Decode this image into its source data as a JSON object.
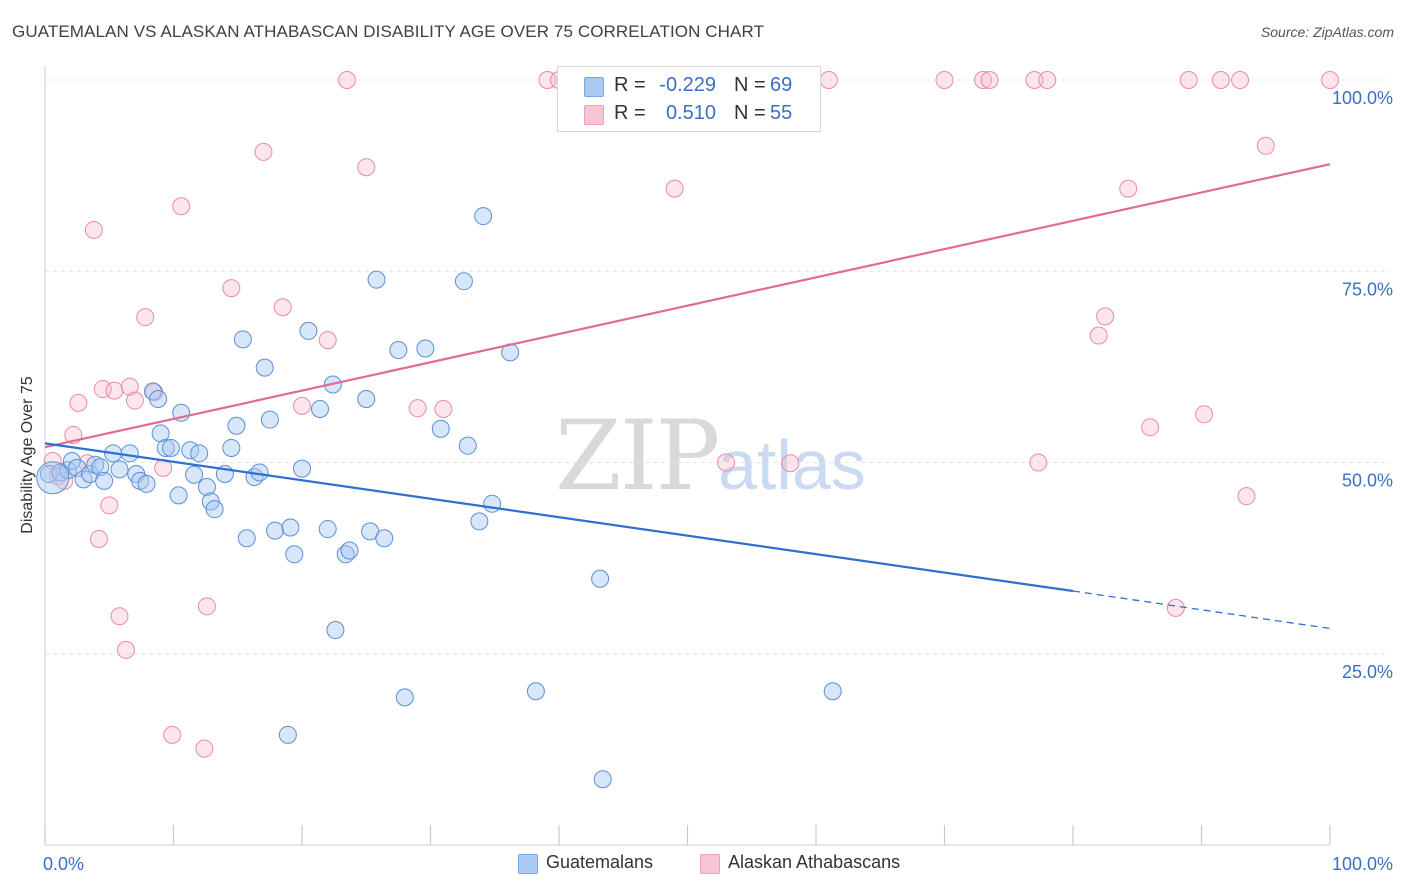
{
  "title": "GUATEMALAN VS ALASKAN ATHABASCAN DISABILITY AGE OVER 75 CORRELATION CHART",
  "source": "Source: ZipAtlas.com",
  "watermark": {
    "zip": "ZIP",
    "atlas": "atlas"
  },
  "legend": {
    "rows": [
      {
        "r_label": "R =",
        "r_value": "-0.229",
        "n_label": "N =",
        "n_value": "69",
        "color": "#a9c8f2"
      },
      {
        "r_label": "R =",
        "r_value": "0.510",
        "n_label": "N =",
        "n_value": "55",
        "color": "#f6b6c9"
      }
    ]
  },
  "bottom_legend": {
    "items": [
      {
        "label": "Guatemalans",
        "color": "#a9c8f2"
      },
      {
        "label": "Alaskan Athabascans",
        "color": "#f6b6c9"
      }
    ]
  },
  "chart_data": {
    "type": "scatter",
    "title": "GUATEMALAN VS ALASKAN ATHABASCAN DISABILITY AGE OVER 75 CORRELATION CHART",
    "xlabel": "",
    "ylabel": "Disability Age Over 75",
    "xlim": [
      0,
      100
    ],
    "ylim": [
      0,
      100
    ],
    "x_tick_labels": [
      "0.0%",
      "100.0%"
    ],
    "y_tick_labels": [
      "25.0%",
      "50.0%",
      "75.0%",
      "100.0%"
    ],
    "y_ticks": [
      25,
      50,
      75,
      100
    ],
    "grid": true,
    "colors": {
      "guatemalans": "#5b8fd8",
      "guatemalans_fill": "rgba(169,200,242,0.45)",
      "athabascans": "#ec8aa9",
      "athabascans_fill": "rgba(246,182,201,0.35)",
      "blue_line": "#2f6fd1",
      "pink_line": "#e06b95",
      "axis_text": "#3a6fc4"
    },
    "series": [
      {
        "name": "Guatemalans",
        "trend": {
          "x": [
            0,
            80,
            100
          ],
          "y": [
            52.5,
            33.2,
            28.3
          ],
          "solid_until": 80
        },
        "points": [
          [
            0.3,
            48.5
          ],
          [
            1.2,
            48.7
          ],
          [
            1.8,
            49.0
          ],
          [
            2.1,
            50.2
          ],
          [
            2.5,
            49.3
          ],
          [
            3.0,
            47.8
          ],
          [
            3.5,
            48.5
          ],
          [
            3.9,
            49.7
          ],
          [
            4.3,
            49.4
          ],
          [
            4.6,
            47.6
          ],
          [
            5.3,
            51.2
          ],
          [
            5.8,
            49.1
          ],
          [
            6.6,
            51.2
          ],
          [
            7.1,
            48.5
          ],
          [
            7.4,
            47.6
          ],
          [
            7.9,
            47.2
          ],
          [
            8.4,
            59.3
          ],
          [
            8.8,
            58.3
          ],
          [
            9.0,
            53.8
          ],
          [
            9.4,
            51.9
          ],
          [
            9.8,
            51.9
          ],
          [
            10.4,
            45.7
          ],
          [
            10.6,
            56.5
          ],
          [
            11.3,
            51.6
          ],
          [
            11.6,
            48.4
          ],
          [
            12.0,
            51.2
          ],
          [
            12.6,
            46.8
          ],
          [
            12.9,
            44.9
          ],
          [
            13.2,
            43.9
          ],
          [
            14.0,
            48.5
          ],
          [
            14.5,
            51.9
          ],
          [
            14.9,
            54.8
          ],
          [
            15.4,
            66.1
          ],
          [
            15.7,
            40.1
          ],
          [
            16.3,
            48.1
          ],
          [
            16.7,
            48.7
          ],
          [
            17.1,
            62.4
          ],
          [
            17.5,
            55.6
          ],
          [
            17.9,
            41.1
          ],
          [
            18.9,
            14.4
          ],
          [
            19.1,
            41.5
          ],
          [
            19.4,
            38.0
          ],
          [
            20.0,
            49.2
          ],
          [
            20.5,
            67.2
          ],
          [
            21.4,
            57.0
          ],
          [
            22.0,
            41.3
          ],
          [
            22.4,
            60.2
          ],
          [
            22.6,
            28.1
          ],
          [
            23.4,
            38.0
          ],
          [
            23.7,
            38.5
          ],
          [
            25.0,
            58.3
          ],
          [
            25.3,
            41.0
          ],
          [
            25.8,
            73.9
          ],
          [
            26.4,
            40.1
          ],
          [
            27.5,
            64.7
          ],
          [
            28.0,
            19.3
          ],
          [
            29.6,
            64.9
          ],
          [
            30.8,
            54.4
          ],
          [
            32.6,
            73.7
          ],
          [
            32.9,
            52.2
          ],
          [
            33.8,
            42.3
          ],
          [
            34.1,
            82.2
          ],
          [
            34.8,
            44.6
          ],
          [
            36.2,
            64.4
          ],
          [
            38.2,
            20.1
          ],
          [
            43.2,
            34.8
          ],
          [
            43.4,
            8.6
          ],
          [
            61.3,
            20.1
          ],
          [
            0.6,
            48.0
          ]
        ]
      },
      {
        "name": "Alaskan Athabascans",
        "trend": {
          "x": [
            0,
            100
          ],
          "y": [
            52.0,
            89.0
          ]
        },
        "points": [
          [
            0.6,
            50.2
          ],
          [
            1.0,
            48.2
          ],
          [
            1.5,
            47.6
          ],
          [
            2.2,
            53.6
          ],
          [
            2.6,
            57.8
          ],
          [
            3.3,
            49.9
          ],
          [
            3.8,
            80.4
          ],
          [
            4.2,
            40.0
          ],
          [
            4.5,
            59.6
          ],
          [
            5.0,
            44.4
          ],
          [
            5.4,
            59.4
          ],
          [
            5.8,
            29.9
          ],
          [
            6.3,
            25.5
          ],
          [
            6.6,
            59.9
          ],
          [
            7.0,
            58.1
          ],
          [
            7.8,
            69.0
          ],
          [
            8.5,
            59.2
          ],
          [
            9.2,
            49.3
          ],
          [
            9.9,
            14.4
          ],
          [
            10.6,
            83.5
          ],
          [
            12.4,
            12.6
          ],
          [
            12.6,
            31.2
          ],
          [
            14.5,
            72.8
          ],
          [
            17.0,
            90.6
          ],
          [
            18.5,
            70.3
          ],
          [
            20.0,
            57.4
          ],
          [
            22.0,
            66.0
          ],
          [
            23.5,
            100.0
          ],
          [
            25.0,
            88.6
          ],
          [
            29.0,
            57.1
          ],
          [
            31.0,
            57.0
          ],
          [
            39.1,
            100.0
          ],
          [
            40.0,
            100.0
          ],
          [
            49.0,
            85.8
          ],
          [
            53.0,
            50.0
          ],
          [
            58.0,
            49.9
          ],
          [
            61.0,
            100.0
          ],
          [
            70.0,
            100.0
          ],
          [
            73.0,
            100.0
          ],
          [
            73.5,
            100.0
          ],
          [
            77.0,
            100.0
          ],
          [
            78.0,
            100.0
          ],
          [
            77.3,
            50.0
          ],
          [
            82.0,
            66.6
          ],
          [
            82.5,
            69.1
          ],
          [
            84.3,
            85.8
          ],
          [
            86.0,
            54.6
          ],
          [
            88.0,
            31.0
          ],
          [
            89.0,
            100.0
          ],
          [
            90.2,
            56.3
          ],
          [
            91.5,
            100.0
          ],
          [
            93.0,
            100.0
          ],
          [
            93.5,
            45.6
          ],
          [
            95.0,
            91.4
          ],
          [
            100.0,
            100.0
          ]
        ]
      }
    ]
  }
}
